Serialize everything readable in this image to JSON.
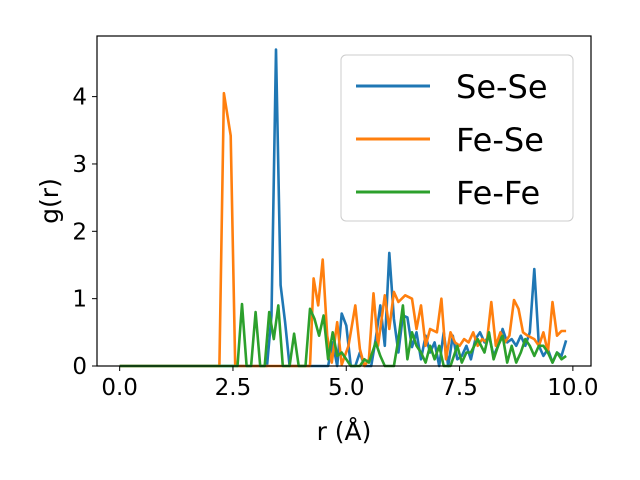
{
  "chart_data": {
    "type": "line",
    "xlabel": "r (Å)",
    "ylabel": "g(r)",
    "xlim": [
      -0.5,
      10.4
    ],
    "ylim": [
      0,
      4.9
    ],
    "xticks": [
      0.0,
      2.5,
      5.0,
      7.5,
      10.0
    ],
    "xtick_labels": [
      "0.0",
      "2.5",
      "5.0",
      "7.5",
      "10.0"
    ],
    "yticks": [
      0,
      1,
      2,
      3,
      4
    ],
    "ytick_labels": [
      "0",
      "1",
      "2",
      "3",
      "4"
    ],
    "grid": false,
    "legend_position": "top-right",
    "series": [
      {
        "name": "Se-Se",
        "color": "#1f77b4",
        "points": [
          [
            0,
            0
          ],
          [
            3.25,
            0
          ],
          [
            3.35,
            0.75
          ],
          [
            3.45,
            4.7
          ],
          [
            3.55,
            1.2
          ],
          [
            3.65,
            0.65
          ],
          [
            3.75,
            0
          ],
          [
            4.6,
            0
          ],
          [
            4.7,
            0.35
          ],
          [
            4.8,
            0
          ],
          [
            4.9,
            0.78
          ],
          [
            5.0,
            0.6
          ],
          [
            5.1,
            0
          ],
          [
            5.2,
            0
          ],
          [
            5.3,
            0.2
          ],
          [
            5.4,
            0
          ],
          [
            5.55,
            0
          ],
          [
            5.65,
            0.4
          ],
          [
            5.75,
            0.9
          ],
          [
            5.85,
            0.3
          ],
          [
            5.95,
            1.68
          ],
          [
            6.05,
            0.7
          ],
          [
            6.15,
            0.2
          ],
          [
            6.25,
            0.75
          ],
          [
            6.35,
            0.72
          ],
          [
            6.45,
            0.28
          ],
          [
            6.55,
            0.5
          ],
          [
            6.65,
            0.1
          ],
          [
            6.75,
            0.45
          ],
          [
            6.85,
            0.2
          ],
          [
            6.95,
            0.35
          ],
          [
            7.05,
            0
          ],
          [
            7.15,
            0.5
          ],
          [
            7.25,
            0
          ],
          [
            7.35,
            0.45
          ],
          [
            7.45,
            0.1
          ],
          [
            7.55,
            0.15
          ],
          [
            7.65,
            0.3
          ],
          [
            7.75,
            0.1
          ],
          [
            7.85,
            0.4
          ],
          [
            7.95,
            0.5
          ],
          [
            8.05,
            0.35
          ],
          [
            8.15,
            0.45
          ],
          [
            8.25,
            0.15
          ],
          [
            8.35,
            0.3
          ],
          [
            8.45,
            0.55
          ],
          [
            8.55,
            0.35
          ],
          [
            8.65,
            0.4
          ],
          [
            8.75,
            0.3
          ],
          [
            8.85,
            0.45
          ],
          [
            8.95,
            0.3
          ],
          [
            9.05,
            0.5
          ],
          [
            9.15,
            1.44
          ],
          [
            9.25,
            0.3
          ],
          [
            9.35,
            0.15
          ],
          [
            9.45,
            0.25
          ],
          [
            9.55,
            0.05
          ],
          [
            9.65,
            0.2
          ],
          [
            9.75,
            0.15
          ],
          [
            9.85,
            0.38
          ]
        ]
      },
      {
        "name": "Fe-Se",
        "color": "#ff7f0e",
        "points": [
          [
            0,
            0
          ],
          [
            2.2,
            0
          ],
          [
            2.3,
            4.05
          ],
          [
            2.45,
            3.42
          ],
          [
            2.55,
            0
          ],
          [
            4.2,
            0
          ],
          [
            4.28,
            1.3
          ],
          [
            4.38,
            0.9
          ],
          [
            4.48,
            1.58
          ],
          [
            4.58,
            0.45
          ],
          [
            4.68,
            0.05
          ],
          [
            4.8,
            0.65
          ],
          [
            4.9,
            0.02
          ],
          [
            5.05,
            0.3
          ],
          [
            5.2,
            0.9
          ],
          [
            5.3,
            0.25
          ],
          [
            5.4,
            0
          ],
          [
            5.5,
            0.1
          ],
          [
            5.6,
            1.08
          ],
          [
            5.7,
            0.3
          ],
          [
            5.85,
            1.05
          ],
          [
            5.95,
            0.55
          ],
          [
            6.05,
            1.1
          ],
          [
            6.15,
            0.95
          ],
          [
            6.3,
            1.05
          ],
          [
            6.45,
            1.0
          ],
          [
            6.55,
            0.55
          ],
          [
            6.65,
            0.9
          ],
          [
            6.75,
            0.3
          ],
          [
            6.85,
            0.55
          ],
          [
            7.0,
            0.5
          ],
          [
            7.1,
            1.0
          ],
          [
            7.2,
            0.1
          ],
          [
            7.3,
            0.5
          ],
          [
            7.4,
            0.35
          ],
          [
            7.5,
            0.3
          ],
          [
            7.6,
            0.4
          ],
          [
            7.7,
            0.35
          ],
          [
            7.8,
            0.5
          ],
          [
            7.9,
            0.3
          ],
          [
            8.0,
            0.4
          ],
          [
            8.1,
            0.35
          ],
          [
            8.2,
            0.95
          ],
          [
            8.3,
            0.3
          ],
          [
            8.4,
            0.5
          ],
          [
            8.5,
            0.35
          ],
          [
            8.6,
            0.45
          ],
          [
            8.7,
            0.98
          ],
          [
            8.8,
            0.85
          ],
          [
            8.9,
            0.5
          ],
          [
            9.0,
            0.45
          ],
          [
            9.15,
            0.4
          ],
          [
            9.25,
            0.3
          ],
          [
            9.35,
            0.5
          ],
          [
            9.45,
            0.2
          ],
          [
            9.55,
            0.95
          ],
          [
            9.65,
            0.45
          ],
          [
            9.75,
            0.52
          ],
          [
            9.85,
            0.52
          ]
        ]
      },
      {
        "name": "Fe-Fe",
        "color": "#2ca02c",
        "points": [
          [
            0,
            0
          ],
          [
            2.6,
            0
          ],
          [
            2.7,
            0.92
          ],
          [
            2.8,
            0
          ],
          [
            2.9,
            0
          ],
          [
            3.0,
            0.8
          ],
          [
            3.1,
            0
          ],
          [
            3.2,
            0
          ],
          [
            3.3,
            0.8
          ],
          [
            3.4,
            0.4
          ],
          [
            3.5,
            0.9
          ],
          [
            3.6,
            0
          ],
          [
            3.75,
            0
          ],
          [
            3.85,
            0.48
          ],
          [
            3.95,
            0
          ],
          [
            4.1,
            0
          ],
          [
            4.2,
            0.85
          ],
          [
            4.3,
            0.7
          ],
          [
            4.4,
            0.45
          ],
          [
            4.5,
            0.75
          ],
          [
            4.6,
            0.1
          ],
          [
            4.7,
            0.5
          ],
          [
            4.8,
            0.15
          ],
          [
            4.9,
            0.2
          ],
          [
            5.0,
            0.1
          ],
          [
            5.1,
            0
          ],
          [
            5.3,
            0
          ],
          [
            5.4,
            0.1
          ],
          [
            5.5,
            0.05
          ],
          [
            5.65,
            0.35
          ],
          [
            5.75,
            0.15
          ],
          [
            5.85,
            0
          ],
          [
            6.05,
            0
          ],
          [
            6.15,
            0.4
          ],
          [
            6.25,
            0.9
          ],
          [
            6.35,
            0.1
          ],
          [
            6.45,
            0.5
          ],
          [
            6.55,
            0.3
          ],
          [
            6.65,
            0.2
          ],
          [
            6.75,
            0.05
          ],
          [
            6.85,
            0.3
          ],
          [
            6.95,
            0.1
          ],
          [
            7.05,
            0.3
          ],
          [
            7.15,
            0
          ],
          [
            7.3,
            0
          ],
          [
            7.45,
            0.3
          ],
          [
            7.55,
            0.05
          ],
          [
            7.65,
            0.2
          ],
          [
            7.75,
            0.2
          ],
          [
            7.9,
            0.4
          ],
          [
            8.05,
            0.2
          ],
          [
            8.15,
            0.5
          ],
          [
            8.25,
            0.1
          ],
          [
            8.35,
            0.3
          ],
          [
            8.45,
            0.45
          ],
          [
            8.55,
            0.05
          ],
          [
            8.65,
            0.3
          ],
          [
            8.75,
            0.05
          ],
          [
            8.85,
            0.2
          ],
          [
            8.95,
            0.4
          ],
          [
            9.05,
            0.3
          ],
          [
            9.15,
            0.15
          ],
          [
            9.25,
            0.3
          ],
          [
            9.35,
            0.3
          ],
          [
            9.45,
            0.2
          ],
          [
            9.55,
            0.05
          ],
          [
            9.65,
            0.2
          ],
          [
            9.75,
            0.1
          ],
          [
            9.85,
            0.15
          ]
        ]
      }
    ]
  }
}
